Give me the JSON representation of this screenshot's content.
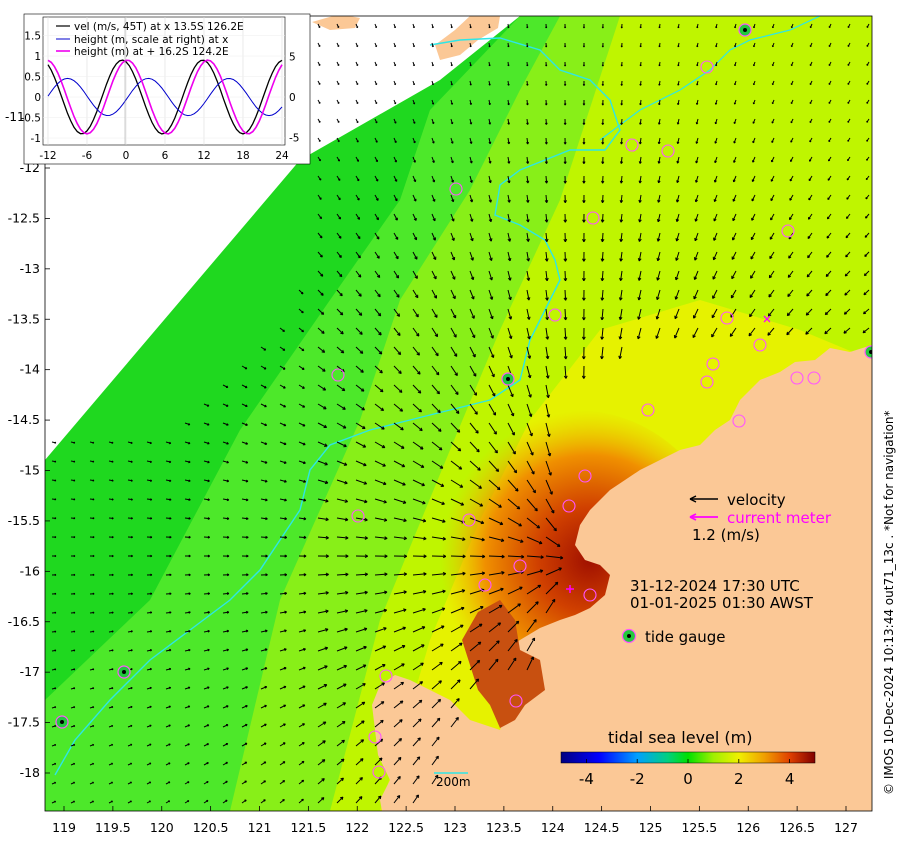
{
  "axes": {
    "x_ticks": [
      "119",
      "119.5",
      "120",
      "120.5",
      "121",
      "121.5",
      "122",
      "122.5",
      "123",
      "123.5",
      "124",
      "124.5",
      "125",
      "125.5",
      "126",
      "126.5",
      "127"
    ],
    "y_ticks": [
      "-12",
      "-12.5",
      "-13",
      "-13.5",
      "-14",
      "-14.5",
      "-15",
      "-15.5",
      "-16",
      "-16.5",
      "-17",
      "-17.5",
      "-18"
    ],
    "y_ticks_partial": [
      "-11"
    ]
  },
  "inset": {
    "legend": [
      {
        "label": "vel (m/s, 45T) at x 13.5S 126.2E",
        "color": "#000000"
      },
      {
        "label": "height (m, scale at right) at x",
        "color": "#0000cc"
      },
      {
        "label": "height (m) at + 16.2S 124.2E",
        "color": "#ee00ee"
      }
    ],
    "x_ticks": [
      "-12",
      "-6",
      "0",
      "6",
      "12",
      "18",
      "24"
    ],
    "y_left_ticks": [
      "1.5",
      "1",
      "0.5",
      "0",
      "-0.5",
      "-1"
    ],
    "y_right_ticks": [
      "5",
      "0",
      "-5"
    ]
  },
  "legend_labels": {
    "velocity": "velocity",
    "current_meter": "current meter",
    "scale_value": "1.2 (m/s)",
    "utc_time": "31-12-2024 17:30 UTC",
    "local_time": "01-01-2025 01:30 AWST",
    "tide_gauge": "tide gauge"
  },
  "colorbar": {
    "title": "tidal sea level (m)",
    "ticks": [
      "-4",
      "-2",
      "0",
      "2",
      "4"
    ]
  },
  "contour_label": "200m",
  "side_note": "© IMOS 10-Dec-2024 10:13:44 out71_13c . *Not for navigation*",
  "colors": {
    "land": "#fbc896",
    "contour": "#2ee6e6",
    "current_meter": "#ff00ff",
    "tide_gauge": "#22c93c"
  }
}
